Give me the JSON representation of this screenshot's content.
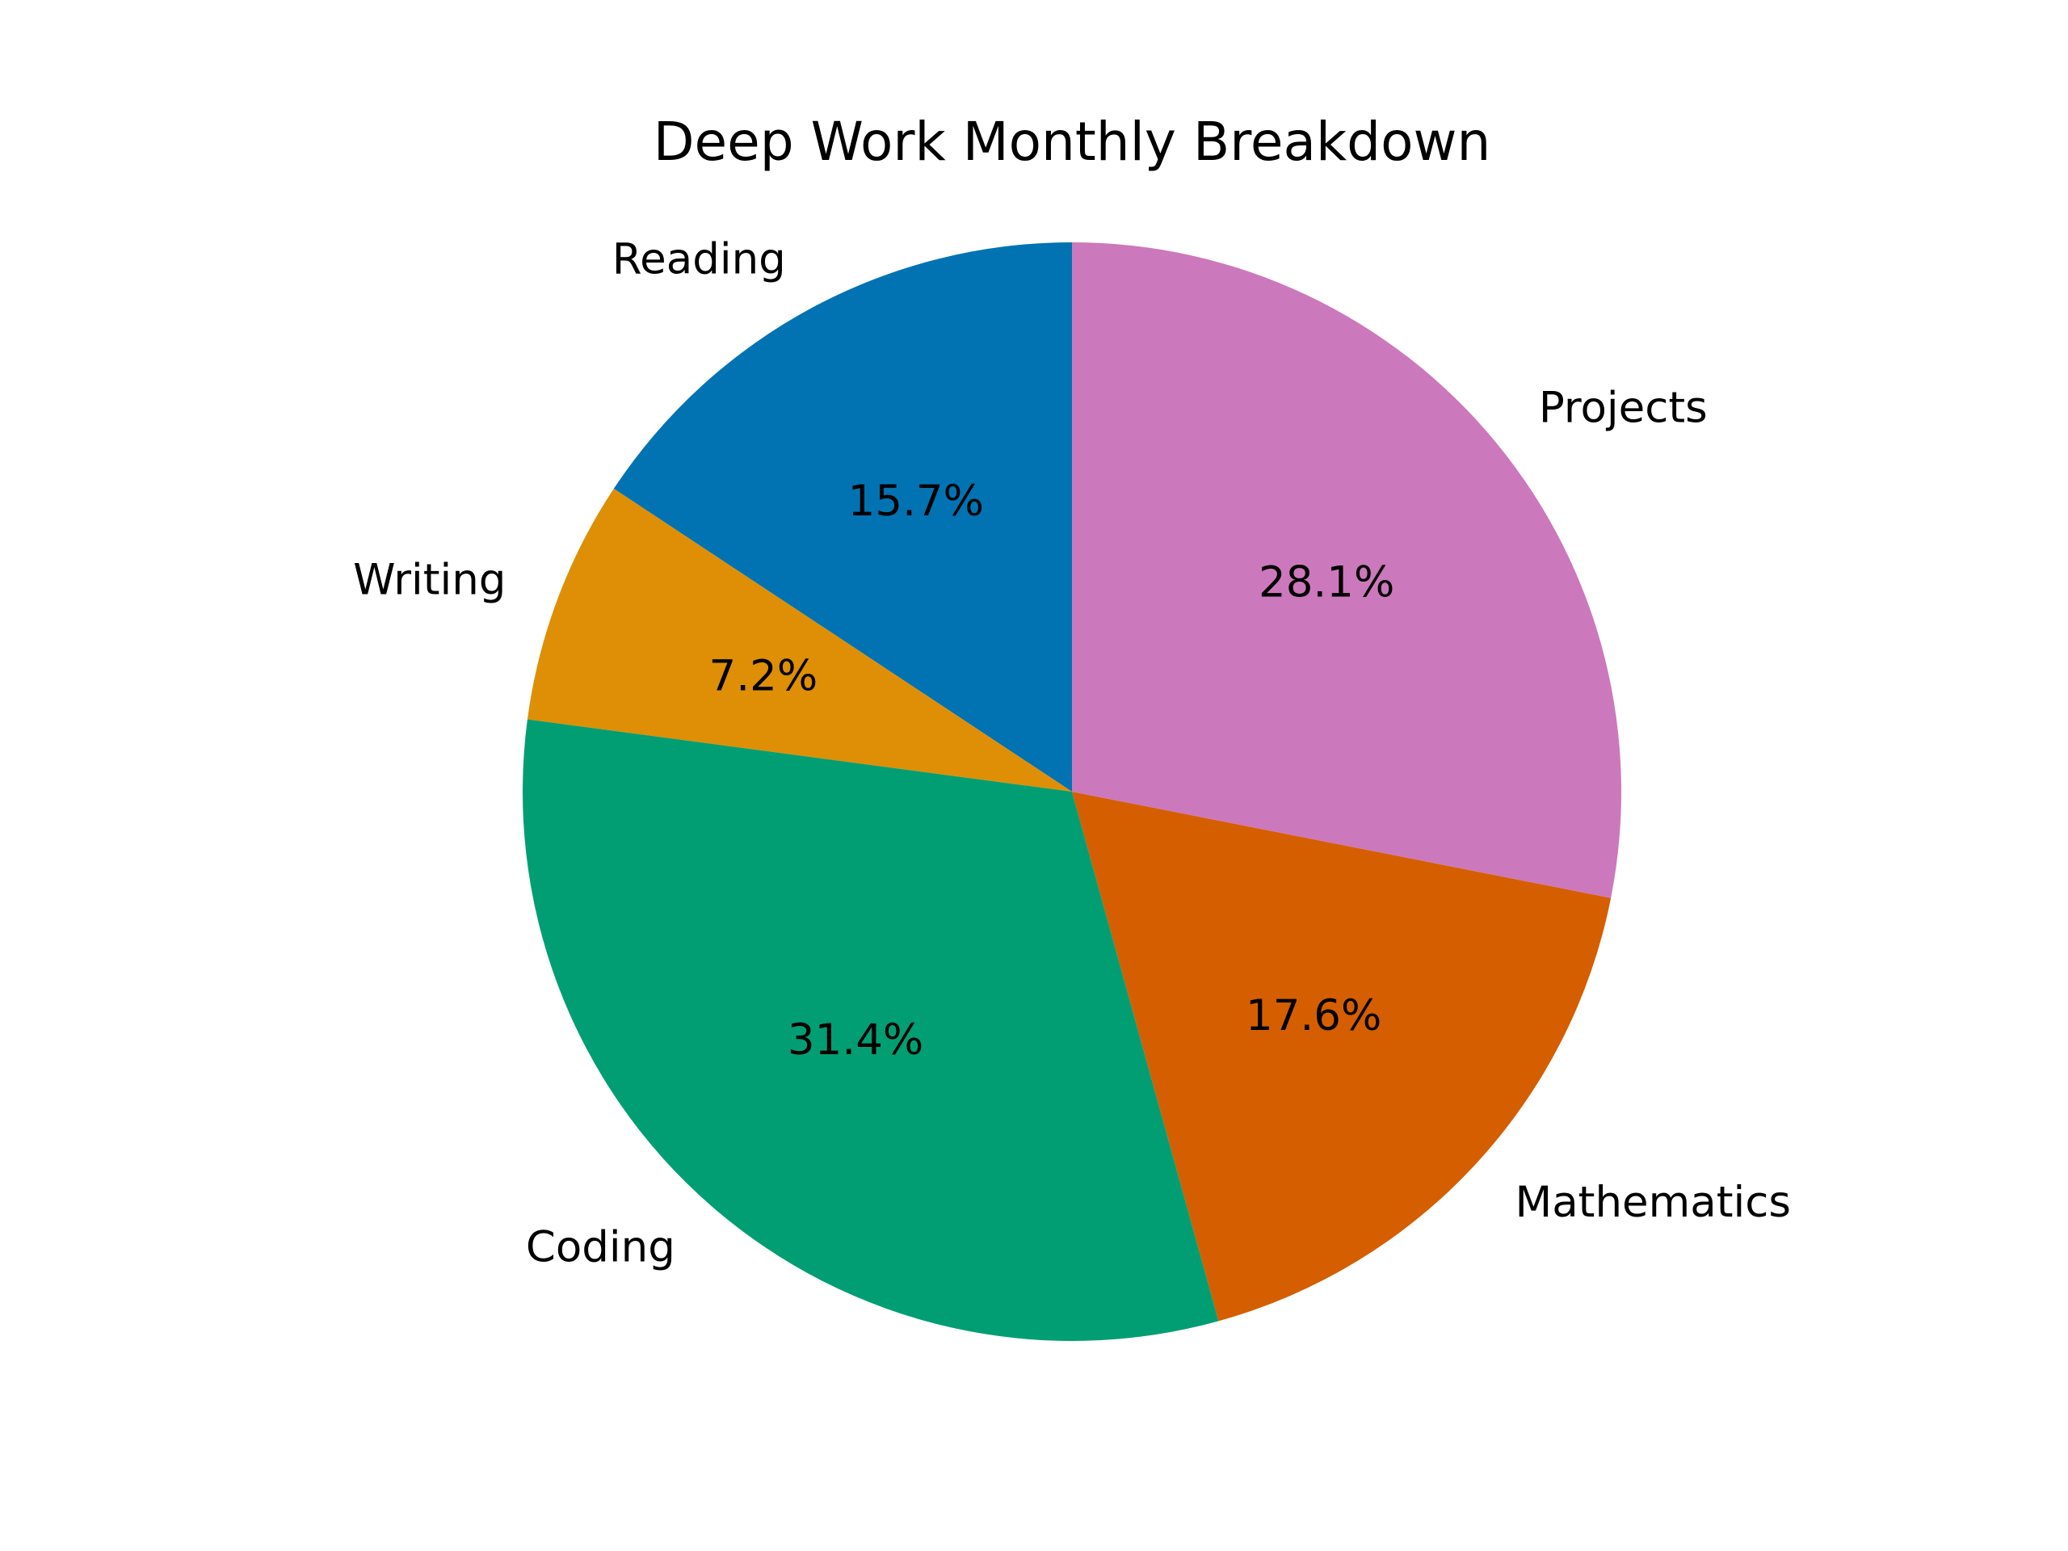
{
  "chart_data": {
    "type": "pie",
    "title": "Deep Work Monthly Breakdown",
    "start_angle_deg": 90,
    "direction": "counterclockwise",
    "slices": [
      {
        "label": "Reading",
        "value": 15.7,
        "value_label": "15.7%",
        "color": "#0173b2"
      },
      {
        "label": "Writing",
        "value": 7.2,
        "value_label": "7.2%",
        "color": "#de8f05"
      },
      {
        "label": "Coding",
        "value": 31.4,
        "value_label": "31.4%",
        "color": "#029e73"
      },
      {
        "label": "Mathematics",
        "value": 17.6,
        "value_label": "17.6%",
        "color": "#d55e00"
      },
      {
        "label": "Projects",
        "value": 28.1,
        "value_label": "28.1%",
        "color": "#cc78bc"
      }
    ]
  }
}
